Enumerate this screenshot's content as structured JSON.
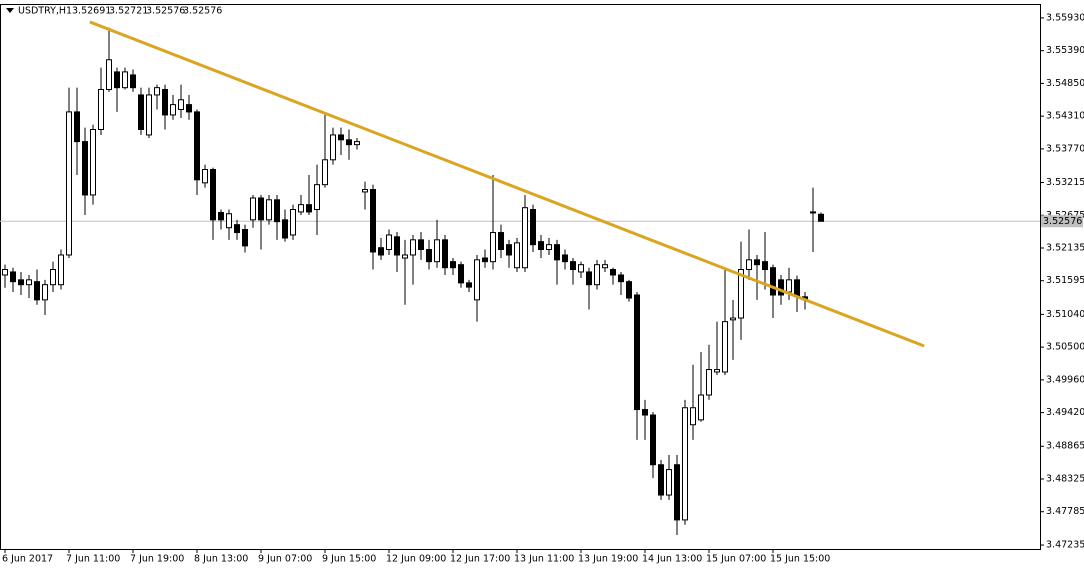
{
  "chart_data": {
    "type": "candlestick",
    "title": "USDTRY,H1",
    "categories": [
      "6 Jun 2017",
      null,
      null,
      null,
      null,
      null,
      null,
      null,
      "7 Jun 11:00",
      null,
      null,
      null,
      null,
      null,
      null,
      null,
      "7 Jun 19:00",
      null,
      null,
      null,
      null,
      null,
      null,
      null,
      "8 Jun 13:00",
      null,
      null,
      null,
      null,
      null,
      null,
      null,
      "9 Jun 07:00",
      null,
      null,
      null,
      null,
      null,
      null,
      null,
      "9 Jun 15:00",
      null,
      null,
      null,
      null,
      null,
      null,
      null,
      "12 Jun 09:00",
      null,
      null,
      null,
      null,
      null,
      null,
      null,
      "12 Jun 17:00",
      null,
      null,
      null,
      null,
      null,
      null,
      null,
      "13 Jun 11:00",
      null,
      null,
      null,
      null,
      null,
      null,
      null,
      "13 Jun 19:00",
      null,
      null,
      null,
      null,
      null,
      null,
      null,
      "14 Jun 13:00",
      null,
      null,
      null,
      null,
      null,
      null,
      null,
      "15 Jun 07:00",
      null,
      null,
      null,
      null,
      null,
      null,
      null,
      "15 Jun 15:00",
      null,
      null,
      null,
      null,
      null,
      null
    ],
    "open": [
      3.5169,
      3.5174,
      3.5161,
      3.5153,
      3.5158,
      3.5128,
      3.5153,
      3.5153,
      3.5202,
      3.5438,
      3.5389,
      3.5301,
      3.5409,
      3.5475,
      3.5504,
      3.5478,
      3.5499,
      3.5466,
      3.54,
      3.5466,
      3.5475,
      3.5433,
      3.5442,
      3.545,
      3.5438,
      3.5321,
      3.5343,
      3.5272,
      3.5247,
      3.5252,
      3.5244,
      3.526,
      3.5296,
      3.526,
      3.5293,
      3.526,
      3.5235,
      3.5273,
      3.5285,
      3.5277,
      3.5318,
      3.5359,
      3.54,
      3.5392,
      3.5384,
      3.5306,
      3.531,
      3.5214,
      3.5211,
      3.5232,
      3.5197,
      3.5202,
      3.5227,
      3.5211,
      3.5191,
      3.5227,
      3.5191,
      3.5186,
      3.5156,
      3.5128,
      3.5197,
      3.5191,
      3.5239,
      3.5219,
      3.5181,
      3.5181,
      3.5277,
      3.5224,
      3.5211,
      3.5219,
      3.5202,
      3.5191,
      3.5174,
      3.5174,
      3.5153,
      3.5181,
      3.5178,
      3.5169,
      3.5158,
      3.5136,
      3.4947,
      3.4938,
      3.4856,
      3.4806,
      3.4856,
      3.4765,
      3.4922,
      3.493,
      3.4971,
      3.5009,
      3.5009,
      3.5095,
      3.5098,
      3.5178,
      3.5194,
      3.5191,
      3.5181,
      3.5161,
      3.5141,
      3.5161,
      3.5133,
      3.5273,
      3.52691
    ],
    "high": [
      3.5186,
      3.5181,
      3.5174,
      3.5169,
      3.5178,
      3.5161,
      3.5191,
      3.5211,
      3.5478,
      3.5478,
      3.5412,
      3.5417,
      3.5511,
      3.5577,
      3.5511,
      3.5511,
      3.5508,
      3.5478,
      3.5478,
      3.5483,
      3.5483,
      3.5466,
      3.5483,
      3.5466,
      3.5442,
      3.5351,
      3.5346,
      3.5277,
      3.5277,
      3.526,
      3.5252,
      3.5301,
      3.5301,
      3.5301,
      3.5301,
      3.5277,
      3.5285,
      3.5301,
      3.5334,
      3.5351,
      3.5433,
      3.5412,
      3.5412,
      3.5409,
      3.5395,
      3.5323,
      3.5318,
      3.523,
      3.5244,
      3.524,
      3.5227,
      3.5235,
      3.524,
      3.5227,
      3.526,
      3.5235,
      3.5197,
      3.5191,
      3.5161,
      3.5202,
      3.5211,
      3.5334,
      3.5252,
      3.5227,
      3.523,
      3.5301,
      3.5285,
      3.5235,
      3.523,
      3.5227,
      3.5211,
      3.5197,
      3.5191,
      3.5181,
      3.5194,
      3.5194,
      3.5181,
      3.5174,
      3.5161,
      3.5141,
      3.4963,
      3.4943,
      3.4864,
      3.4872,
      3.4872,
      3.4963,
      3.5021,
      3.5042,
      3.5054,
      3.5092,
      3.5178,
      3.5128,
      3.5224,
      3.5244,
      3.5202,
      3.524,
      3.5186,
      3.5169,
      3.5181,
      3.5168,
      3.5141,
      3.5313,
      3.52721
    ],
    "low": [
      3.5148,
      3.5141,
      3.5136,
      3.5131,
      3.512,
      3.5103,
      3.5141,
      3.5145,
      3.5197,
      3.5334,
      3.5268,
      3.5285,
      3.54,
      3.5471,
      3.5438,
      3.5475,
      3.5471,
      3.54,
      3.5395,
      3.5442,
      3.5409,
      3.5425,
      3.5428,
      3.5425,
      3.5301,
      3.5313,
      3.5227,
      3.5244,
      3.5227,
      3.5227,
      3.5206,
      3.5247,
      3.5211,
      3.5252,
      3.5227,
      3.5224,
      3.5227,
      3.5268,
      3.5268,
      3.5235,
      3.5313,
      3.5351,
      3.5367,
      3.5359,
      3.5376,
      3.5277,
      3.5178,
      3.5194,
      3.5202,
      3.5174,
      3.512,
      3.5153,
      3.5194,
      3.5178,
      3.5181,
      3.5169,
      3.5169,
      3.5148,
      3.5141,
      3.5092,
      3.5181,
      3.5178,
      3.5197,
      3.5181,
      3.5174,
      3.5174,
      3.5207,
      3.5197,
      3.5202,
      3.5153,
      3.5178,
      3.5153,
      3.5164,
      3.5112,
      3.5145,
      3.5174,
      3.5153,
      3.5136,
      3.5125,
      3.4897,
      3.4897,
      3.4834,
      3.4798,
      3.4798,
      3.474,
      3.4757,
      3.4897,
      3.4927,
      3.4963,
      3.5004,
      3.5004,
      3.5029,
      3.5062,
      3.5161,
      3.5128,
      3.5145,
      3.5098,
      3.512,
      3.5128,
      3.5108,
      3.5112,
      3.5207,
      3.52576
    ],
    "close": [
      3.5178,
      3.5158,
      3.5153,
      3.5161,
      3.5128,
      3.5153,
      3.5178,
      3.5202,
      3.5438,
      3.5389,
      3.5301,
      3.5409,
      3.5475,
      3.5524,
      3.5478,
      3.5504,
      3.5478,
      3.5409,
      3.5466,
      3.5478,
      3.5433,
      3.545,
      3.5458,
      3.5438,
      3.5326,
      3.5343,
      3.526,
      3.526,
      3.527,
      3.5239,
      3.5217,
      3.5296,
      3.526,
      3.5293,
      3.5257,
      3.523,
      3.5277,
      3.5285,
      3.5273,
      3.5318,
      3.5359,
      3.54,
      3.5392,
      3.5384,
      3.5389,
      3.531,
      3.5207,
      3.5202,
      3.5235,
      3.5202,
      3.5202,
      3.5227,
      3.5211,
      3.5191,
      3.5227,
      3.5181,
      3.5181,
      3.5156,
      3.5149,
      3.5194,
      3.5191,
      3.5239,
      3.5211,
      3.5202,
      3.5222,
      3.528,
      3.5219,
      3.5211,
      3.5219,
      3.5194,
      3.5191,
      3.5178,
      3.5186,
      3.5153,
      3.5186,
      3.5186,
      3.5169,
      3.5158,
      3.5131,
      3.4947,
      3.4938,
      3.4856,
      3.4806,
      3.4848,
      3.4765,
      3.495,
      3.495,
      3.4971,
      3.5013,
      3.5013,
      3.5092,
      3.5098,
      3.5178,
      3.5194,
      3.5186,
      3.5178,
      3.5136,
      3.5136,
      3.5161,
      3.5133,
      3.5128,
      3.5273,
      3.52576
    ],
    "ylim": [
      3.4717,
      3.5616
    ],
    "yticks": [
      {
        "value": 3.5593,
        "label": "3.55930"
      },
      {
        "value": 3.5539,
        "label": "3.55390"
      },
      {
        "value": 3.5485,
        "label": "3.54850"
      },
      {
        "value": 3.5431,
        "label": "3.54310"
      },
      {
        "value": 3.5377,
        "label": "3.53770"
      },
      {
        "value": 3.53215,
        "label": "3.53215"
      },
      {
        "value": 3.52675,
        "label": "3.52675"
      },
      {
        "value": 3.52135,
        "label": "3.52135"
      },
      {
        "value": 3.51595,
        "label": "3.51595"
      },
      {
        "value": 3.5104,
        "label": "3.51040"
      },
      {
        "value": 3.505,
        "label": "3.50500"
      },
      {
        "value": 3.4996,
        "label": "3.49960"
      },
      {
        "value": 3.4942,
        "label": "3.49420"
      },
      {
        "value": 3.48865,
        "label": "3.48865"
      },
      {
        "value": 3.48325,
        "label": "3.48325"
      },
      {
        "value": 3.47785,
        "label": "3.47785"
      },
      {
        "value": 3.47235,
        "label": "3.47235"
      }
    ],
    "up_color": "#ffffff",
    "down_color": "#000000",
    "trendline": {
      "x": [
        10.6,
        114.9
      ],
      "y": [
        3.55864,
        3.50518
      ],
      "color": "#daa520"
    }
  }
}
